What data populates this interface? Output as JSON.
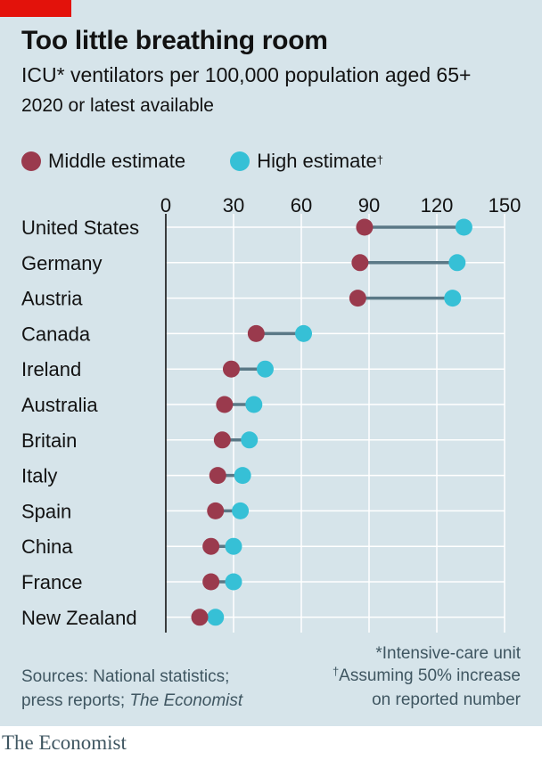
{
  "title": "Too little breathing room",
  "subtitle": "ICU* ventilators per 100,000 population aged 65+",
  "subnote": "2020 or latest available",
  "legend": {
    "middle": "Middle estimate",
    "high": "High estimate",
    "high_mark": "†"
  },
  "footnotes": {
    "asterisk": "*Intensive-care unit",
    "dagger_mark": "†",
    "dagger_line1": "Assuming 50% increase",
    "dagger_line2": "on reported number"
  },
  "source": {
    "line1": "Sources: National statistics;",
    "line2_prefix": "press reports; ",
    "line2_italic": "The Economist"
  },
  "brand": "The Economist",
  "colors": {
    "background": "#d6e4ea",
    "middle": "#9a3a4d",
    "high": "#36c0d6",
    "connector": "#5a7886",
    "brand_red": "#e3120b"
  },
  "chart_data": {
    "type": "dot-range",
    "xlim": [
      0,
      150
    ],
    "xticks": [
      0,
      30,
      60,
      90,
      120,
      150
    ],
    "grid": true,
    "legend_position": "top",
    "categories": [
      "United States",
      "Germany",
      "Austria",
      "Canada",
      "Ireland",
      "Australia",
      "Britain",
      "Italy",
      "Spain",
      "China",
      "France",
      "New Zealand"
    ],
    "series": [
      {
        "name": "Middle estimate",
        "values": [
          88,
          86,
          85,
          40,
          29,
          26,
          25,
          23,
          22,
          20,
          20,
          15
        ]
      },
      {
        "name": "High estimate",
        "values": [
          132,
          129,
          127,
          61,
          44,
          39,
          37,
          34,
          33,
          30,
          30,
          22
        ]
      }
    ]
  }
}
